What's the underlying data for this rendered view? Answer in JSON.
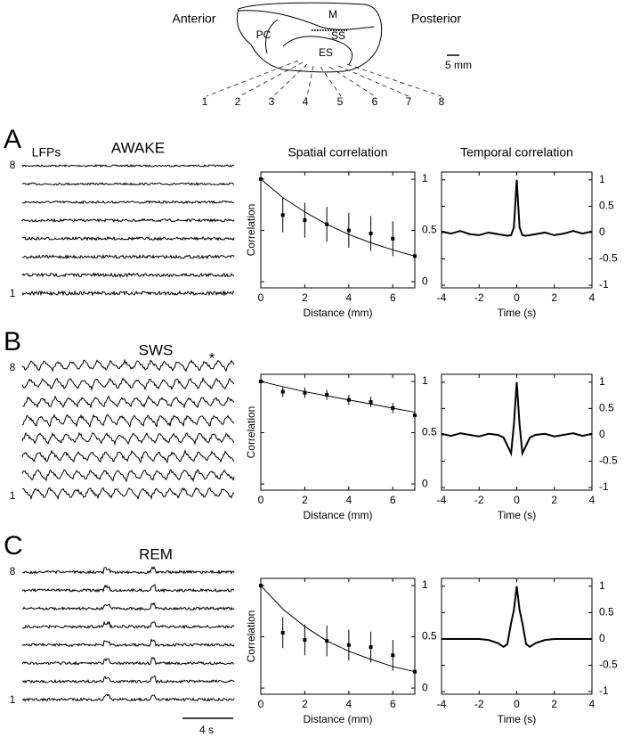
{
  "diagram": {
    "anterior": "Anterior",
    "posterior": "Posterior",
    "m": "M",
    "pc": "PC",
    "ss": "SS",
    "es": "ES",
    "scale": "5 mm",
    "electrodes": [
      "1",
      "2",
      "3",
      "4",
      "5",
      "6",
      "7",
      "8"
    ]
  },
  "panels": [
    {
      "letter": "A",
      "state": "AWAKE",
      "top_label": "8",
      "bottom_label": "1",
      "lfps_label": "LFPs"
    },
    {
      "letter": "B",
      "state": "SWS",
      "top_label": "8",
      "bottom_label": "1",
      "marker": "*"
    },
    {
      "letter": "C",
      "state": "REM",
      "top_label": "8",
      "bottom_label": "1",
      "scale_bar": "4 s"
    }
  ],
  "chart_data": [
    {
      "type": "scatter",
      "title": "Spatial correlation",
      "x_label": "Distance (mm)",
      "y_label": "Correlation",
      "x": [
        0,
        1,
        2,
        3,
        4,
        5,
        6,
        7
      ],
      "values": [
        1,
        0.65,
        0.6,
        0.56,
        0.5,
        0.47,
        0.42,
        0.25
      ],
      "errors": [
        0,
        0.17,
        0.17,
        0.17,
        0.17,
        0.17,
        0.17,
        0
      ],
      "fit": [
        1,
        0.82,
        0.68,
        0.56,
        0.46,
        0.38,
        0.31,
        0.25
      ],
      "xlim": [
        0,
        7
      ],
      "ylim": [
        -0.06,
        1.07
      ],
      "xticks": [
        0,
        2,
        4,
        6
      ],
      "yticks": [
        0,
        0.5,
        1
      ],
      "color": "#000000"
    },
    {
      "type": "scatter",
      "x_label": "Distance (mm)",
      "y_label": "Correlation",
      "x": [
        0,
        1,
        2,
        3,
        4,
        5,
        6,
        7
      ],
      "values": [
        1,
        0.9,
        0.89,
        0.87,
        0.82,
        0.8,
        0.74,
        0.67
      ],
      "errors": [
        0,
        0.05,
        0.05,
        0.05,
        0.05,
        0.05,
        0.05,
        0
      ],
      "fit": [
        1,
        0.95,
        0.9,
        0.86,
        0.82,
        0.78,
        0.74,
        0.7
      ],
      "xlim": [
        0,
        7
      ],
      "ylim": [
        -0.06,
        1.07
      ],
      "xticks": [
        0,
        2,
        4,
        6
      ],
      "yticks": [
        0,
        0.5,
        1
      ],
      "color": "#000000"
    },
    {
      "type": "scatter",
      "x_label": "Distance (mm)",
      "y_label": "Correlation",
      "x": [
        0,
        1,
        2,
        3,
        4,
        5,
        6,
        7
      ],
      "values": [
        1,
        0.54,
        0.47,
        0.46,
        0.42,
        0.4,
        0.32,
        0.16
      ],
      "errors": [
        0,
        0.15,
        0.15,
        0.15,
        0.15,
        0.15,
        0.15,
        0
      ],
      "fit": [
        1,
        0.77,
        0.6,
        0.46,
        0.36,
        0.28,
        0.21,
        0.16
      ],
      "xlim": [
        0,
        7
      ],
      "ylim": [
        -0.06,
        1.07
      ],
      "xticks": [
        0,
        2,
        4,
        6
      ],
      "yticks": [
        0,
        0.5,
        1
      ],
      "color": "#000000"
    },
    {
      "type": "line",
      "title": "Temporal correlation",
      "x_label": "Time (s)",
      "x": [
        -4,
        -3.5,
        -3,
        -2.5,
        -2,
        -1.5,
        -1,
        -0.7,
        -0.5,
        -0.3,
        -0.15,
        0,
        0.15,
        0.3,
        0.5,
        0.7,
        1,
        1.5,
        2,
        2.5,
        3,
        3.5,
        4
      ],
      "values": [
        0.02,
        -0.02,
        0.03,
        -0.03,
        -0.05,
        0,
        -0.03,
        -0.05,
        -0.06,
        -0.05,
        0.1,
        1,
        0.1,
        -0.05,
        -0.06,
        -0.05,
        -0.03,
        0,
        -0.05,
        -0.02,
        0.03,
        -0.02,
        0.02
      ],
      "xlim": [
        -4,
        4
      ],
      "ylim": [
        -1.05,
        1.15
      ],
      "xticks": [
        -4,
        -2,
        0,
        2,
        4
      ],
      "yticks": [
        -1,
        -0.5,
        0,
        0.5,
        1
      ],
      "color": "#000000"
    },
    {
      "type": "line",
      "x_label": "Time (s)",
      "x": [
        -4,
        -3.5,
        -3,
        -2.5,
        -2,
        -1.5,
        -1,
        -0.7,
        -0.5,
        -0.3,
        -0.15,
        0,
        0.15,
        0.3,
        0.5,
        0.7,
        1,
        1.5,
        2,
        2.5,
        3,
        3.5,
        4
      ],
      "values": [
        0.02,
        -0.02,
        0.03,
        0,
        -0.03,
        0.02,
        0,
        -0.05,
        -0.2,
        -0.35,
        0.2,
        1,
        0.2,
        -0.35,
        -0.2,
        -0.05,
        0,
        0.02,
        -0.03,
        0,
        0.03,
        -0.02,
        0.02
      ],
      "xlim": [
        -4,
        4
      ],
      "ylim": [
        -1.05,
        1.15
      ],
      "xticks": [
        -4,
        -2,
        0,
        2,
        4
      ],
      "yticks": [
        -1,
        -0.5,
        0,
        0.5,
        1
      ],
      "color": "#000000"
    },
    {
      "type": "line",
      "x_label": "Time (s)",
      "x": [
        -4,
        -3.5,
        -3,
        -2.5,
        -2,
        -1.5,
        -1,
        -0.7,
        -0.5,
        -0.3,
        -0.15,
        0,
        0.15,
        0.3,
        0.5,
        0.7,
        1,
        1.5,
        2,
        2.5,
        3,
        3.5,
        4
      ],
      "values": [
        0,
        0,
        0,
        0,
        0,
        -0.02,
        -0.08,
        -0.15,
        -0.1,
        0.3,
        0.55,
        1,
        0.55,
        0.3,
        -0.1,
        -0.15,
        -0.08,
        -0.02,
        0,
        0,
        0,
        0,
        0
      ],
      "xlim": [
        -4,
        4
      ],
      "ylim": [
        -1.05,
        1.15
      ],
      "xticks": [
        -4,
        -2,
        0,
        2,
        4
      ],
      "yticks": [
        -1,
        -0.5,
        0,
        0.5,
        1
      ],
      "color": "#000000"
    }
  ]
}
